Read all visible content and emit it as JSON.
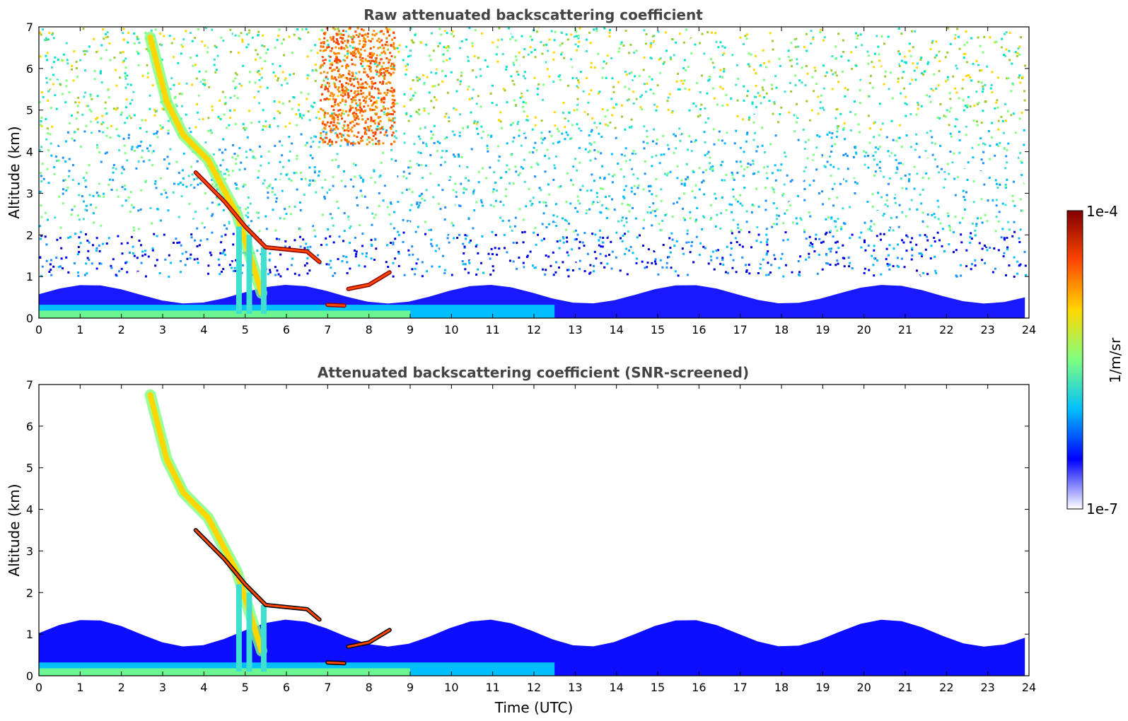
{
  "chart_data": [
    {
      "type": "heatmap",
      "title": "Raw attenuated backscattering coefficient",
      "xlabel": "",
      "ylabel": "Altitude (km)",
      "xlim": [
        0,
        24
      ],
      "ylim": [
        0,
        7
      ],
      "xticks": [
        "0",
        "1",
        "2",
        "3",
        "4",
        "5",
        "6",
        "7",
        "8",
        "9",
        "10",
        "11",
        "12",
        "13",
        "14",
        "15",
        "16",
        "17",
        "18",
        "19",
        "20",
        "21",
        "22",
        "23",
        "24"
      ],
      "yticks": [
        "0",
        "1",
        "2",
        "3",
        "4",
        "5",
        "6",
        "7"
      ],
      "screened": false,
      "features": [
        {
          "kind": "boundary_layer",
          "time_range": [
            0,
            23.9
          ],
          "top_km": [
            0.35,
            0.8
          ]
        },
        {
          "kind": "cloud_layer",
          "points": [
            [
              3.8,
              3.5
            ],
            [
              4.5,
              2.8
            ],
            [
              5.0,
              2.2
            ],
            [
              5.5,
              1.7
            ],
            [
              6.5,
              1.6
            ],
            [
              6.8,
              1.35
            ]
          ]
        },
        {
          "kind": "cloud_layer",
          "points": [
            [
              7.0,
              0.32
            ],
            [
              7.4,
              0.3
            ]
          ]
        },
        {
          "kind": "cloud_layer",
          "points": [
            [
              7.5,
              0.7
            ],
            [
              8.0,
              0.8
            ],
            [
              8.5,
              1.1
            ]
          ]
        },
        {
          "kind": "virga",
          "points": [
            [
              2.7,
              6.75
            ],
            [
              3.1,
              5.2
            ],
            [
              3.5,
              4.4
            ],
            [
              4.1,
              3.8
            ],
            [
              4.8,
              2.5
            ],
            [
              5.4,
              0.6
            ]
          ]
        }
      ]
    },
    {
      "type": "heatmap",
      "title": "Attenuated backscattering coefficient (SNR-screened)",
      "xlabel": "Time (UTC)",
      "ylabel": "Altitude (km)",
      "xlim": [
        0,
        24
      ],
      "ylim": [
        0,
        7
      ],
      "xticks": [
        "0",
        "1",
        "2",
        "3",
        "4",
        "5",
        "6",
        "7",
        "8",
        "9",
        "10",
        "11",
        "12",
        "13",
        "14",
        "15",
        "16",
        "17",
        "18",
        "19",
        "20",
        "21",
        "22",
        "23",
        "24"
      ],
      "yticks": [
        "0",
        "1",
        "2",
        "3",
        "4",
        "5",
        "6",
        "7"
      ],
      "screened": true,
      "features": [
        {
          "kind": "boundary_layer",
          "time_range": [
            0,
            23.9
          ],
          "top_km": [
            0.7,
            1.35
          ]
        },
        {
          "kind": "cloud_layer",
          "points": [
            [
              3.8,
              3.5
            ],
            [
              4.5,
              2.8
            ],
            [
              5.0,
              2.2
            ],
            [
              5.5,
              1.7
            ],
            [
              6.5,
              1.6
            ],
            [
              6.8,
              1.35
            ]
          ]
        },
        {
          "kind": "cloud_layer",
          "points": [
            [
              7.0,
              0.32
            ],
            [
              7.4,
              0.3
            ]
          ]
        },
        {
          "kind": "cloud_layer",
          "points": [
            [
              7.5,
              0.7
            ],
            [
              8.0,
              0.8
            ],
            [
              8.5,
              1.1
            ]
          ]
        },
        {
          "kind": "virga",
          "points": [
            [
              2.7,
              6.75
            ],
            [
              3.1,
              5.2
            ],
            [
              3.5,
              4.4
            ],
            [
              4.1,
              3.8
            ],
            [
              4.8,
              2.5
            ],
            [
              5.4,
              0.6
            ]
          ]
        }
      ]
    }
  ],
  "colorbar": {
    "label": "1/m/sr",
    "max_label": "1e-4",
    "min_label": "1e-7",
    "scale": "log",
    "colormap": "jet",
    "colors": [
      "#ffffff",
      "#0000ff",
      "#00bfff",
      "#7fff7f",
      "#ffd700",
      "#ff4500",
      "#800000"
    ]
  }
}
